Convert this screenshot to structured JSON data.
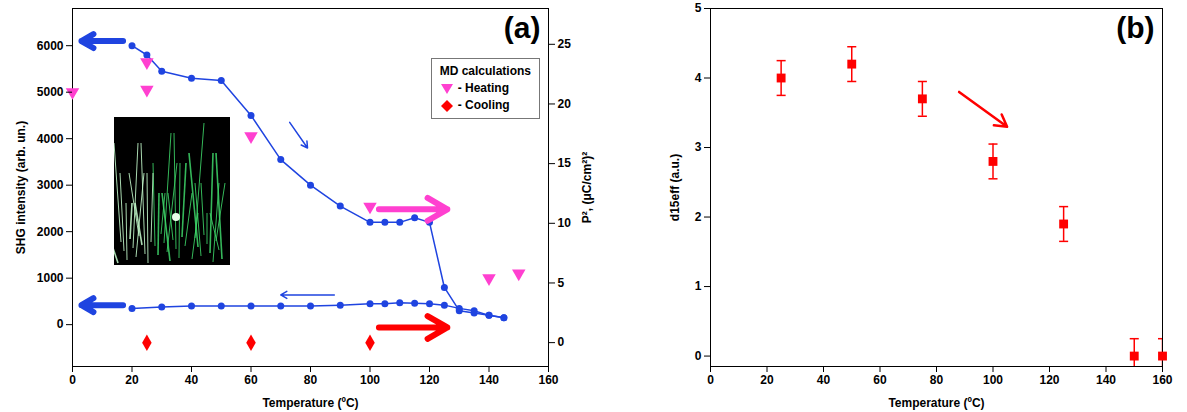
{
  "chart_data": [
    {
      "type": "line",
      "title": "(a)",
      "xlabel": "Temperature (ºC)",
      "ylabel": "SHG intensity (arb. un.)",
      "y2label": "P², (μC/cm²)²",
      "xlim": [
        0,
        160
      ],
      "xticks": [
        0,
        20,
        40,
        60,
        80,
        100,
        120,
        140,
        160
      ],
      "ylim": [
        -900,
        6800
      ],
      "yticks": [
        0,
        1000,
        2000,
        3000,
        4000,
        5000,
        6000
      ],
      "y2lim": [
        -2,
        28
      ],
      "y2ticks": [
        0,
        5,
        10,
        15,
        20,
        25
      ],
      "grid": false,
      "legend": "top-right",
      "legend_title": "MD calculations",
      "series": [
        {
          "type": "line",
          "marker": "circle",
          "color": "#1f44e0",
          "x": [
            20,
            25,
            30,
            40,
            50,
            60,
            70,
            80,
            90,
            100,
            105,
            110,
            115,
            120,
            125,
            130,
            135,
            140,
            145
          ],
          "values": [
            6000,
            5800,
            5450,
            5300,
            5250,
            4500,
            3550,
            3000,
            2550,
            2200,
            2200,
            2200,
            2300,
            2200,
            800,
            300,
            250,
            200,
            150
          ]
        },
        {
          "type": "line",
          "marker": "circle",
          "color": "#1f44e0",
          "x": [
            20,
            30,
            40,
            50,
            60,
            70,
            80,
            90,
            100,
            105,
            110,
            115,
            120,
            125,
            130,
            135,
            140,
            145
          ],
          "values": [
            350,
            380,
            400,
            400,
            400,
            400,
            400,
            420,
            450,
            450,
            470,
            460,
            450,
            420,
            350,
            300,
            200,
            150
          ]
        },
        {
          "name": "- Heating",
          "type": "scatter",
          "marker": "triangle-down",
          "color": "#ff40d0",
          "axis": "y2",
          "x": [
            0,
            25,
            25,
            60,
            100,
            140,
            150
          ],
          "values": [
            21,
            23.5,
            21.2,
            17.3,
            11.4,
            5.4,
            5.8
          ]
        },
        {
          "name": "- Cooling",
          "type": "scatter",
          "marker": "diamond",
          "color": "#ff0000",
          "axis": "y2",
          "x": [
            25,
            60,
            100
          ],
          "values": [
            0,
            0,
            0
          ]
        }
      ]
    },
    {
      "type": "scatter",
      "title": "(b)",
      "xlabel": "Temperature (ºC)",
      "ylabel": "d15eff (a.u.)",
      "xlim": [
        0,
        160
      ],
      "xticks": [
        0,
        20,
        40,
        60,
        80,
        100,
        120,
        140,
        160
      ],
      "ylim": [
        -0.15,
        5
      ],
      "yticks": [
        0,
        1,
        2,
        3,
        4,
        5
      ],
      "grid": false,
      "marker": "square",
      "color": "#ff0000",
      "x": [
        25,
        50,
        75,
        100,
        125,
        150,
        160
      ],
      "values": [
        4,
        4.2,
        3.7,
        2.8,
        1.9,
        0,
        0
      ],
      "errors": [
        0.25,
        0.25,
        0.25,
        0.25,
        0.25,
        0.25,
        0.25
      ]
    }
  ]
}
